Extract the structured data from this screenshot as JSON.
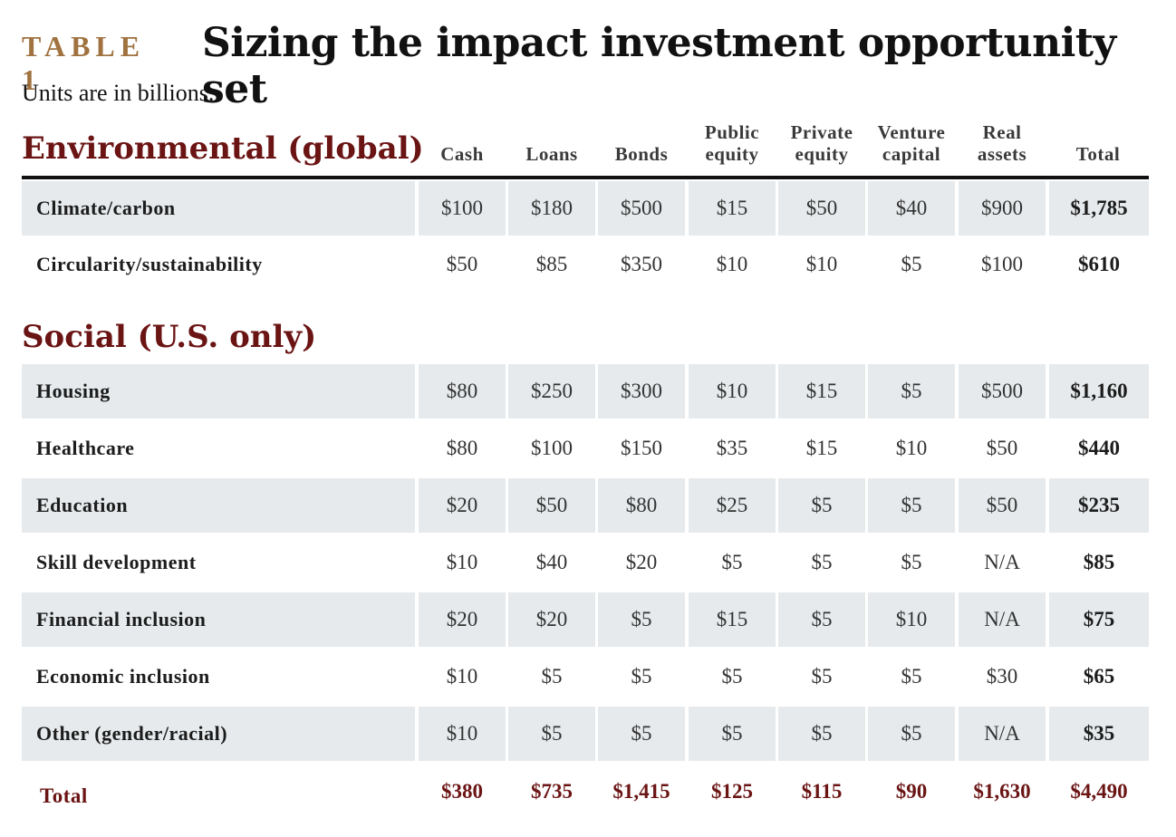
{
  "table_label": "TABLE 1",
  "title": "Sizing the impact investment opportunity set",
  "subtitle": "Units are in billions.",
  "columns": [
    {
      "line1": "",
      "line2": "Cash"
    },
    {
      "line1": "",
      "line2": "Loans"
    },
    {
      "line1": "",
      "line2": "Bonds"
    },
    {
      "line1": "Public",
      "line2": "equity"
    },
    {
      "line1": "Private",
      "line2": "equity"
    },
    {
      "line1": "Venture",
      "line2": "capital"
    },
    {
      "line1": "Real",
      "line2": "assets"
    },
    {
      "line1": "",
      "line2": "Total"
    }
  ],
  "sections": [
    {
      "title": "Environmental (global)",
      "rows": [
        {
          "name": "Climate/carbon",
          "values": [
            "$100",
            "$180",
            "$500",
            "$15",
            "$50",
            "$40",
            "$900",
            "$1,785"
          ]
        },
        {
          "name": "Circularity/sustainability",
          "values": [
            "$50",
            "$85",
            "$350",
            "$10",
            "$10",
            "$5",
            "$100",
            "$610"
          ]
        }
      ]
    },
    {
      "title": "Social (U.S. only)",
      "rows": [
        {
          "name": "Housing",
          "values": [
            "$80",
            "$250",
            "$300",
            "$10",
            "$15",
            "$5",
            "$500",
            "$1,160"
          ]
        },
        {
          "name": "Healthcare",
          "values": [
            "$80",
            "$100",
            "$150",
            "$35",
            "$15",
            "$10",
            "$50",
            "$440"
          ]
        },
        {
          "name": "Education",
          "values": [
            "$20",
            "$50",
            "$80",
            "$25",
            "$5",
            "$5",
            "$50",
            "$235"
          ]
        },
        {
          "name": "Skill development",
          "values": [
            "$10",
            "$40",
            "$20",
            "$5",
            "$5",
            "$5",
            "N/A",
            "$85"
          ]
        },
        {
          "name": "Financial inclusion",
          "values": [
            "$20",
            "$20",
            "$5",
            "$15",
            "$5",
            "$10",
            "N/A",
            "$75"
          ]
        },
        {
          "name": "Economic inclusion",
          "values": [
            "$10",
            "$5",
            "$5",
            "$5",
            "$5",
            "$5",
            "$30",
            "$65"
          ]
        },
        {
          "name": "Other (gender/racial)",
          "values": [
            "$10",
            "$5",
            "$5",
            "$5",
            "$5",
            "$5",
            "N/A",
            "$35"
          ]
        }
      ]
    }
  ],
  "total_row": {
    "name": "Total",
    "values": [
      "$380",
      "$735",
      "$1,415",
      "$125",
      "$115",
      "$90",
      "$1,630",
      "$4,490"
    ]
  },
  "colors": {
    "accent_label": "#a0723f",
    "section_title": "#6b1414",
    "row_shade": "#e6eaec"
  }
}
